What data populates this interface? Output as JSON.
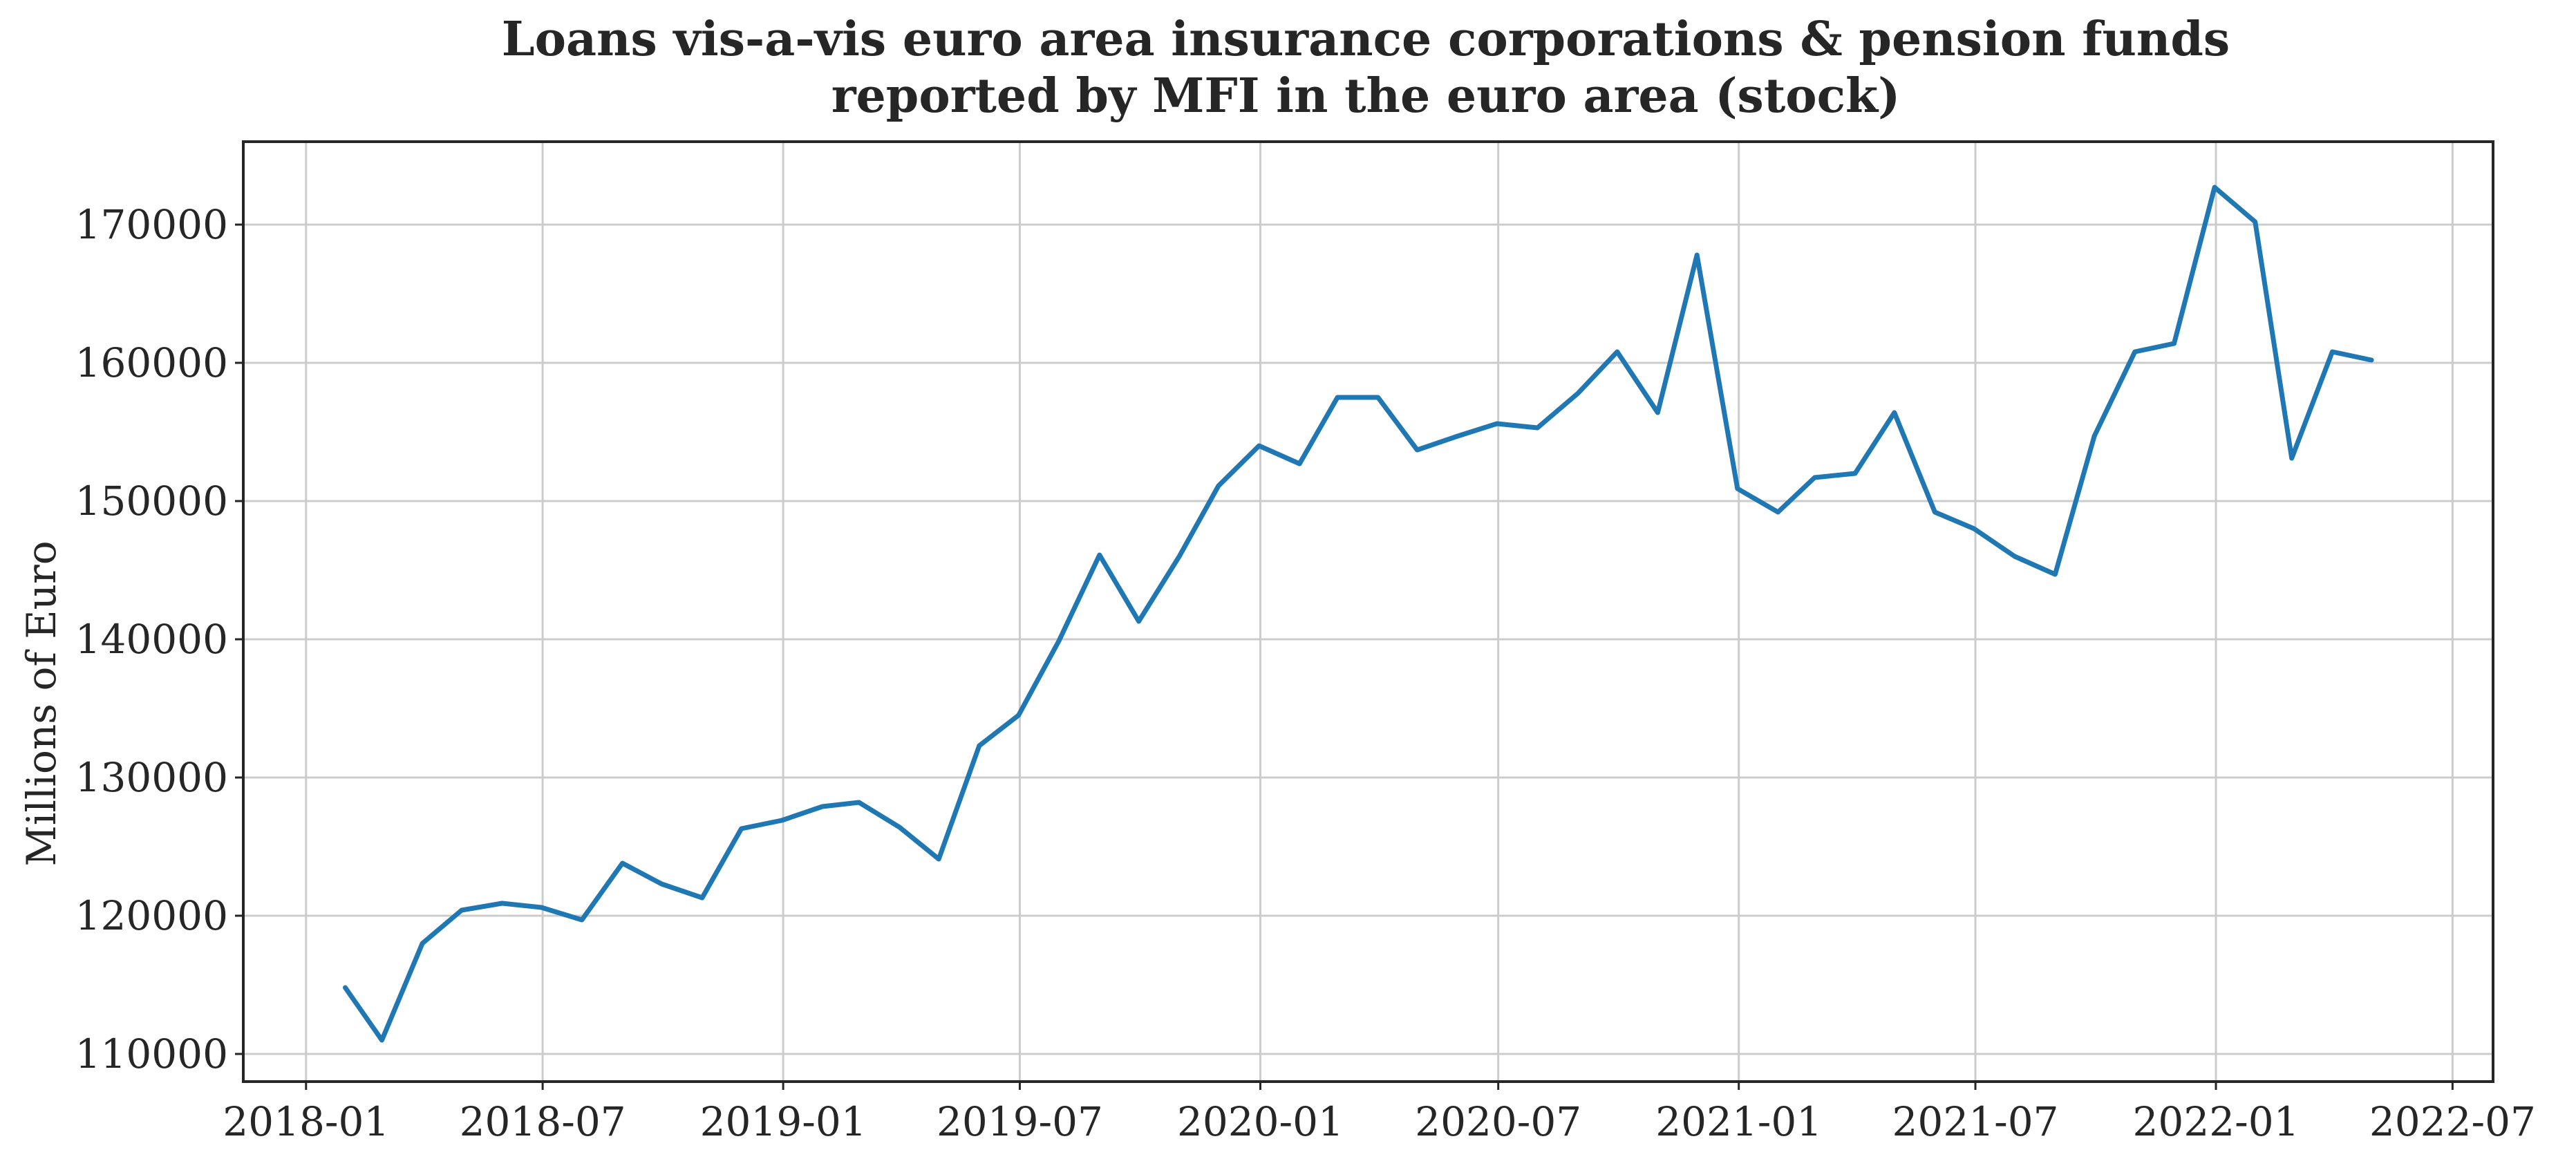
{
  "chart_data": {
    "type": "line",
    "title": "Loans vis-a-vis euro area insurance corporations & pension funds",
    "subtitle": "reported by MFI in the euro area (stock)",
    "xlabel": "",
    "ylabel": "Millions of Euro",
    "xlim": [
      "2017-11-14",
      "2022-08-01"
    ],
    "ylim": [
      108000,
      176000
    ],
    "grid": true,
    "legend": "none",
    "color": "#1f77b4",
    "x_ticks": [
      "2018-01",
      "2018-07",
      "2019-01",
      "2019-07",
      "2020-01",
      "2020-07",
      "2021-01",
      "2021-07",
      "2022-01",
      "2022-07"
    ],
    "y_ticks": [
      110000,
      120000,
      130000,
      140000,
      150000,
      160000,
      170000
    ],
    "series": [
      {
        "x": [
          "2018-01-31",
          "2018-02-28",
          "2018-03-31",
          "2018-04-30",
          "2018-05-31",
          "2018-06-30",
          "2018-07-31",
          "2018-08-31",
          "2018-09-30",
          "2018-10-31",
          "2018-11-30",
          "2018-12-31",
          "2019-01-31",
          "2019-02-28",
          "2019-03-31",
          "2019-04-30",
          "2019-05-31",
          "2019-06-30",
          "2019-07-31",
          "2019-08-31",
          "2019-09-30",
          "2019-10-31",
          "2019-11-30",
          "2019-12-31",
          "2020-01-31",
          "2020-02-29",
          "2020-03-31",
          "2020-04-30",
          "2020-05-31",
          "2020-06-30",
          "2020-07-31",
          "2020-08-31",
          "2020-09-30",
          "2020-10-31",
          "2020-11-30",
          "2020-12-31",
          "2021-01-31",
          "2021-02-28",
          "2021-03-31",
          "2021-04-30",
          "2021-05-31",
          "2021-06-30",
          "2021-07-31",
          "2021-08-31",
          "2021-09-30",
          "2021-10-31",
          "2021-11-30",
          "2021-12-31",
          "2022-01-31",
          "2022-02-28",
          "2022-03-31",
          "2022-04-30"
        ],
        "y": [
          114800,
          111000,
          118000,
          120400,
          120900,
          120600,
          119700,
          123800,
          122300,
          121300,
          126300,
          126900,
          127900,
          128200,
          126400,
          124100,
          132300,
          134500,
          139900,
          146100,
          141300,
          146000,
          151100,
          154000,
          152700,
          157500,
          157500,
          153700,
          154700,
          155600,
          155300,
          157800,
          160800,
          156400,
          167800,
          150900,
          149200,
          151700,
          152000,
          156400,
          149200,
          148000,
          146000,
          144700,
          154700,
          160800,
          161400,
          172700,
          170200,
          153100,
          160800,
          160200
        ]
      }
    ]
  }
}
